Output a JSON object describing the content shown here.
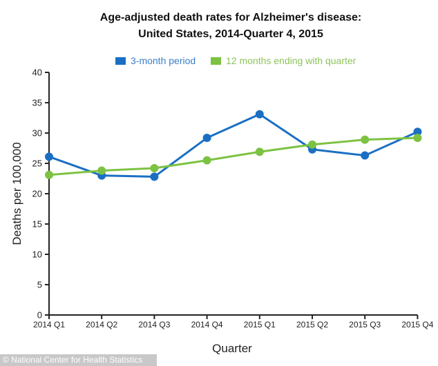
{
  "chart_data": {
    "type": "line",
    "title": [
      "Age-adjusted death rates for Alzheimer's disease:",
      "United States, 2014-Quarter 4, 2015"
    ],
    "xlabel": "Quarter",
    "ylabel": "Deaths per 100,000",
    "categories": [
      "2014 Q1",
      "2014 Q2",
      "2014 Q3",
      "2014 Q4",
      "2015 Q1",
      "2015 Q2",
      "2015 Q3",
      "2015 Q4"
    ],
    "ylim": [
      0,
      40
    ],
    "yticks": [
      0,
      5,
      10,
      15,
      20,
      25,
      30,
      35,
      40
    ],
    "grid": false,
    "legend_position": "top",
    "series": [
      {
        "name": "3-month period",
        "color": "#1a6fc4",
        "values": [
          26.1,
          23.0,
          22.8,
          29.2,
          33.1,
          27.3,
          26.3,
          30.2
        ]
      },
      {
        "name": "12 months ending with quarter",
        "color": "#7dc242",
        "values": [
          23.1,
          23.8,
          24.2,
          25.5,
          26.9,
          28.1,
          28.9,
          29.2
        ]
      }
    ]
  },
  "legend": {
    "items": [
      {
        "label": "3-month period",
        "color": "#1a6fc4",
        "text_color": "#3b7fc8"
      },
      {
        "label": "12 months ending with quarter",
        "color": "#7dc242",
        "text_color": "#8cc45c"
      }
    ]
  },
  "credit": "© National Center for Health Statistics"
}
